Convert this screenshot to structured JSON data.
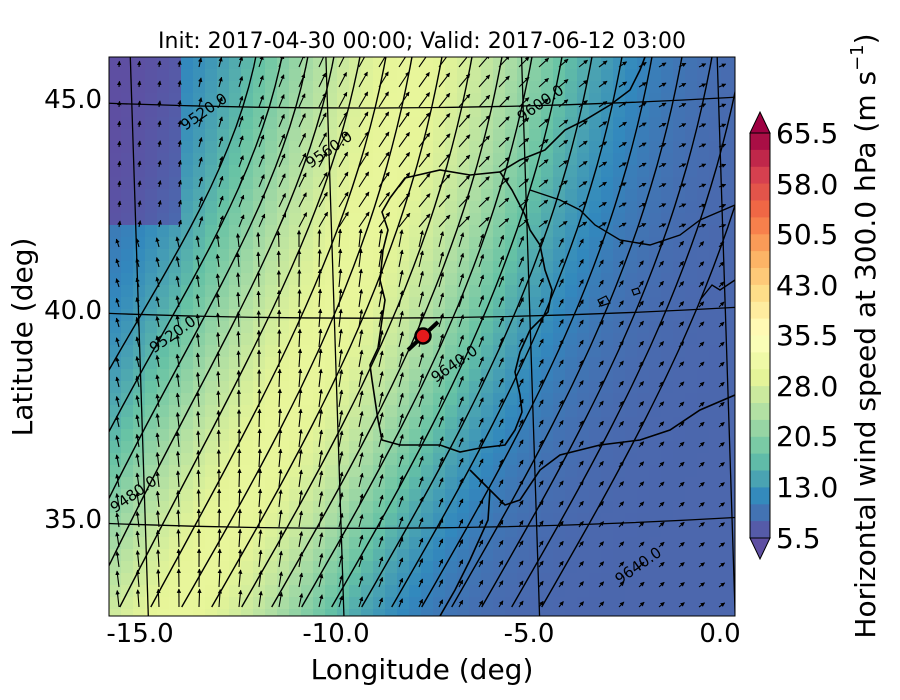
{
  "chart_data": {
    "type": "heatmap",
    "title": "Init: 2017-04-30 00:00; Valid: 2017-06-12 03:00",
    "xlabel": "Longitude (deg)",
    "ylabel": "Latitude (deg)",
    "x_ticks": [
      "-15.0",
      "-10.0",
      "-5.0",
      "0.0"
    ],
    "y_ticks": [
      "45.0",
      "40.0",
      "35.0"
    ],
    "xlim": [
      -15.8,
      0.2
    ],
    "ylim": [
      32.8,
      46.1
    ],
    "colorbar": {
      "label": "Horizontal wind speed at 300.0 hPa (m s",
      "label_sup": "−1",
      "label_end": ")",
      "ticks": [
        "65.5",
        "58.0",
        "50.5",
        "43.0",
        "35.5",
        "28.0",
        "20.5",
        "13.0",
        "5.5"
      ],
      "min": 5.5,
      "max": 65.5,
      "extend": "both",
      "colors": [
        "#5e4fa2",
        "#3288bd",
        "#66c2a5",
        "#abdda4",
        "#e6f598",
        "#ffffbf",
        "#fee08b",
        "#fdae61",
        "#f46d43",
        "#d53e4f",
        "#9e0142"
      ]
    },
    "contour_labels": [
      {
        "text": "9520.0",
        "lon": -13.3,
        "lat": 44.7
      },
      {
        "text": "9600.0",
        "lon": -4.7,
        "lat": 44.9
      },
      {
        "text": "9560.0",
        "lon": -10.1,
        "lat": 43.8
      },
      {
        "text": "9520.0",
        "lon": -14.1,
        "lat": 39.4
      },
      {
        "text": "9640.0",
        "lon": -6.9,
        "lat": 38.7
      },
      {
        "text": "9480.0",
        "lon": -15.1,
        "lat": 35.6
      },
      {
        "text": "9640.0",
        "lon": -2.2,
        "lat": 33.9
      }
    ],
    "marker": {
      "lon": -7.6,
      "lat": 39.3,
      "color": "#e41a1c"
    },
    "jet_axis_lon": -11.5,
    "jet_axis_peak_speed": 30,
    "background_speed": 8
  }
}
